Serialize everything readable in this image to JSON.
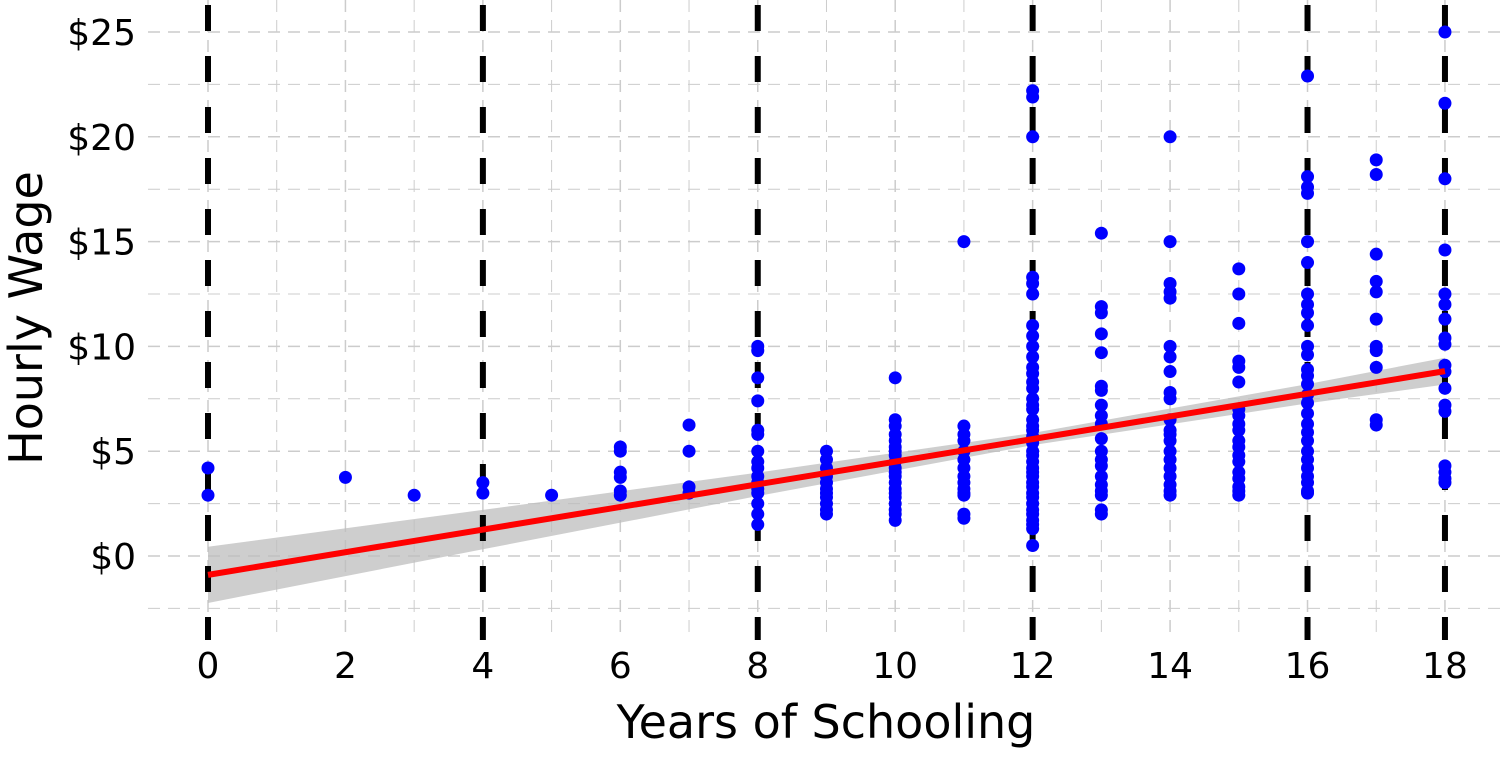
{
  "chart_data": {
    "type": "scatter",
    "xlabel": "Years of Schooling",
    "ylabel": "Hourly Wage",
    "xlim": [
      -0.9,
      18.9
    ],
    "ylim": [
      -3.9,
      26.6
    ],
    "x_ticks": [
      0,
      2,
      4,
      6,
      8,
      10,
      12,
      14,
      16,
      18
    ],
    "x_tick_labels": [
      "0",
      "2",
      "4",
      "6",
      "8",
      "10",
      "12",
      "14",
      "16",
      "18"
    ],
    "y_ticks": [
      0,
      5,
      10,
      15,
      20,
      25
    ],
    "y_tick_labels": [
      "$0",
      "$5",
      "$10",
      "$15",
      "$20",
      "$25"
    ],
    "grid": true,
    "vertical_reference_lines": [
      0,
      4,
      8,
      12,
      16,
      18
    ],
    "colors": {
      "points": "#0000ff",
      "fit_line": "#ff0000",
      "ci_band": "#bebebe",
      "reference_lines": "#000000",
      "grid": "#cccccc"
    },
    "fit": {
      "intercept": -0.9,
      "slope": 0.54,
      "ci_x": [
        0,
        4,
        8,
        12,
        16,
        18
      ],
      "ci_lower": [
        -2.24,
        0.32,
        2.86,
        5.29,
        7.28,
        8.18
      ],
      "ci_upper": [
        0.44,
        2.2,
        3.98,
        5.87,
        8.2,
        9.46
      ]
    },
    "points": [
      {
        "x": 0,
        "wages": [
          4.2,
          2.9
        ]
      },
      {
        "x": 2,
        "wages": [
          3.75
        ]
      },
      {
        "x": 3,
        "wages": [
          2.9
        ]
      },
      {
        "x": 4,
        "wages": [
          3.5,
          3.0
        ]
      },
      {
        "x": 5,
        "wages": [
          2.9
        ]
      },
      {
        "x": 6,
        "wages": [
          5.2,
          5.0,
          4.0,
          3.75,
          3.1,
          2.9
        ]
      },
      {
        "x": 7,
        "wages": [
          6.25,
          5.0,
          3.3,
          3.0
        ]
      },
      {
        "x": 8,
        "wages": [
          10.0,
          9.8,
          8.5,
          7.4,
          6.0,
          5.8,
          5.0,
          4.5,
          4.2,
          3.8,
          3.5,
          3.2,
          3.0,
          2.5,
          2.0,
          1.5
        ]
      },
      {
        "x": 9,
        "wages": [
          5.0,
          4.6,
          4.2,
          3.8,
          3.5,
          3.2,
          3.0,
          2.8,
          2.5,
          2.2,
          2.0
        ]
      },
      {
        "x": 10,
        "wages": [
          8.5,
          6.5,
          6.2,
          5.8,
          5.5,
          5.2,
          5.0,
          4.8,
          4.5,
          4.2,
          4.0,
          3.8,
          3.5,
          3.2,
          3.0,
          2.8,
          2.5,
          2.2,
          2.0,
          1.7
        ]
      },
      {
        "x": 11,
        "wages": [
          15.0,
          6.2,
          5.8,
          5.5,
          5.0,
          4.6,
          4.2,
          3.8,
          3.5,
          3.2,
          3.0,
          2.9,
          2.0,
          1.8
        ]
      },
      {
        "x": 12,
        "wages": [
          22.2,
          21.9,
          20.0,
          13.3,
          13.0,
          12.5,
          11.0,
          10.5,
          10.0,
          9.5,
          9.0,
          8.7,
          8.3,
          8.0,
          7.5,
          7.2,
          7.0,
          6.5,
          6.2,
          6.0,
          5.7,
          5.4,
          5.0,
          4.8,
          4.5,
          4.2,
          4.0,
          3.8,
          3.5,
          3.3,
          3.0,
          2.8,
          2.5,
          2.2,
          2.0,
          1.7,
          1.5,
          1.3,
          0.5
        ]
      },
      {
        "x": 13,
        "wages": [
          15.4,
          11.9,
          11.6,
          10.6,
          9.7,
          8.1,
          7.9,
          7.2,
          6.7,
          6.3,
          5.6,
          5.0,
          4.6,
          4.3,
          3.8,
          3.4,
          3.1,
          2.9,
          2.2,
          2.0
        ]
      },
      {
        "x": 14,
        "wages": [
          20.0,
          15.0,
          13.0,
          12.6,
          12.3,
          10.0,
          9.5,
          8.8,
          7.8,
          7.5,
          6.5,
          6.0,
          5.8,
          5.5,
          5.0,
          4.6,
          4.2,
          3.8,
          3.4,
          3.1,
          2.9
        ]
      },
      {
        "x": 15,
        "wages": [
          13.7,
          12.5,
          11.1,
          9.3,
          9.0,
          8.3,
          7.0,
          6.7,
          6.3,
          6.0,
          5.5,
          5.2,
          4.8,
          4.5,
          4.0,
          3.7,
          3.3,
          3.1,
          2.9
        ]
      },
      {
        "x": 16,
        "wages": [
          22.9,
          18.1,
          17.6,
          17.3,
          15.0,
          14.0,
          12.5,
          12.0,
          11.6,
          11.0,
          10.0,
          9.6,
          8.9,
          8.6,
          8.2,
          7.7,
          7.3,
          6.8,
          6.3,
          5.9,
          5.5,
          5.0,
          4.6,
          4.2,
          3.8,
          3.5,
          3.1,
          3.0
        ]
      },
      {
        "x": 17,
        "wages": [
          18.9,
          18.2,
          14.4,
          13.1,
          12.6,
          11.3,
          10.0,
          9.8,
          9.0,
          6.5,
          6.25
        ]
      },
      {
        "x": 18,
        "wages": [
          25.0,
          21.6,
          18.0,
          14.6,
          12.5,
          12.0,
          11.3,
          10.4,
          10.1,
          9.1,
          8.8,
          8.0,
          7.2,
          6.9,
          4.3,
          4.0,
          3.7,
          3.5
        ]
      }
    ]
  }
}
